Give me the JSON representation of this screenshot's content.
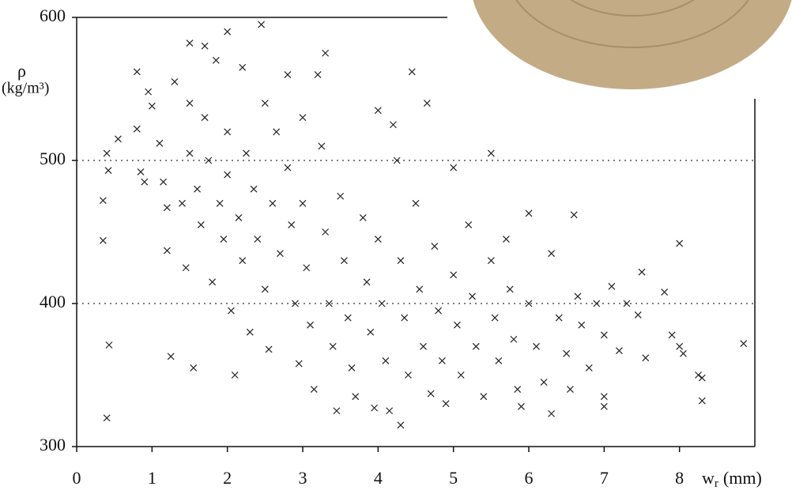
{
  "chart_data": {
    "type": "scatter",
    "y_label_symbol": "ρ",
    "y_label_unit": "(kg/m³)",
    "x_label": "w",
    "x_label_sub": "r",
    "x_label_unit": "(mm)",
    "xlim": [
      0,
      9
    ],
    "xticks": [
      0,
      1,
      2,
      3,
      4,
      5,
      6,
      7,
      8
    ],
    "ylim": [
      300,
      600
    ],
    "yticks": [
      300,
      400,
      500,
      600
    ],
    "grid": true,
    "color": "#222",
    "x": [
      0.35,
      0.35,
      0.4,
      0.42,
      0.43,
      0.4,
      0.55,
      0.8,
      0.8,
      0.85,
      0.9,
      0.95,
      1.0,
      1.1,
      1.15,
      1.2,
      1.2,
      1.25,
      1.3,
      1.4,
      1.45,
      1.5,
      1.5,
      1.5,
      1.55,
      1.6,
      1.65,
      1.7,
      1.7,
      1.75,
      1.8,
      1.85,
      1.9,
      1.95,
      2.0,
      2.0,
      2.0,
      2.05,
      2.1,
      2.15,
      2.2,
      2.2,
      2.25,
      2.3,
      2.35,
      2.4,
      2.45,
      2.5,
      2.5,
      2.55,
      2.6,
      2.65,
      2.7,
      2.8,
      2.8,
      2.85,
      2.9,
      2.95,
      3.0,
      3.0,
      3.05,
      3.1,
      3.15,
      3.2,
      3.25,
      3.3,
      3.3,
      3.35,
      3.4,
      3.45,
      3.5,
      3.55,
      3.6,
      3.65,
      3.7,
      3.8,
      3.85,
      3.9,
      3.95,
      4.0,
      4.0,
      4.05,
      4.1,
      4.15,
      4.2,
      4.25,
      4.3,
      4.3,
      4.35,
      4.4,
      4.45,
      4.5,
      4.55,
      4.6,
      4.65,
      4.7,
      4.75,
      4.8,
      4.85,
      4.9,
      5.0,
      5.0,
      5.05,
      5.1,
      5.2,
      5.25,
      5.3,
      5.4,
      5.5,
      5.5,
      5.55,
      5.6,
      5.7,
      5.75,
      5.8,
      5.85,
      5.9,
      6.0,
      6.0,
      6.1,
      6.2,
      6.3,
      6.3,
      6.4,
      6.5,
      6.55,
      6.6,
      6.65,
      6.7,
      6.8,
      6.9,
      7.0,
      7.0,
      7.0,
      7.1,
      7.2,
      7.3,
      7.45,
      7.5,
      7.55,
      7.8,
      7.9,
      8.0,
      8.0,
      8.05,
      8.25,
      8.3,
      8.3,
      8.85
    ],
    "y": [
      472,
      444,
      505,
      493,
      371,
      320,
      515,
      562,
      522,
      492,
      485,
      548,
      538,
      512,
      485,
      437,
      467,
      363,
      555,
      470,
      425,
      582,
      540,
      505,
      355,
      480,
      455,
      580,
      530,
      500,
      415,
      570,
      470,
      445,
      590,
      520,
      490,
      395,
      350,
      460,
      565,
      430,
      505,
      380,
      480,
      445,
      595,
      540,
      410,
      368,
      470,
      520,
      435,
      560,
      495,
      455,
      400,
      358,
      530,
      470,
      425,
      385,
      340,
      560,
      510,
      575,
      450,
      400,
      370,
      325,
      475,
      430,
      390,
      355,
      335,
      460,
      415,
      380,
      327,
      535,
      445,
      400,
      360,
      325,
      525,
      500,
      430,
      315,
      390,
      350,
      562,
      470,
      410,
      370,
      540,
      337,
      440,
      395,
      360,
      330,
      495,
      420,
      385,
      350,
      455,
      405,
      370,
      335,
      505,
      430,
      390,
      360,
      445,
      410,
      375,
      340,
      328,
      463,
      400,
      370,
      345,
      435,
      323,
      390,
      365,
      340,
      462,
      405,
      385,
      355,
      400,
      378,
      335,
      328,
      412,
      367,
      400,
      392,
      422,
      362,
      408,
      378,
      442,
      370,
      365,
      350,
      348,
      332,
      372
    ]
  }
}
